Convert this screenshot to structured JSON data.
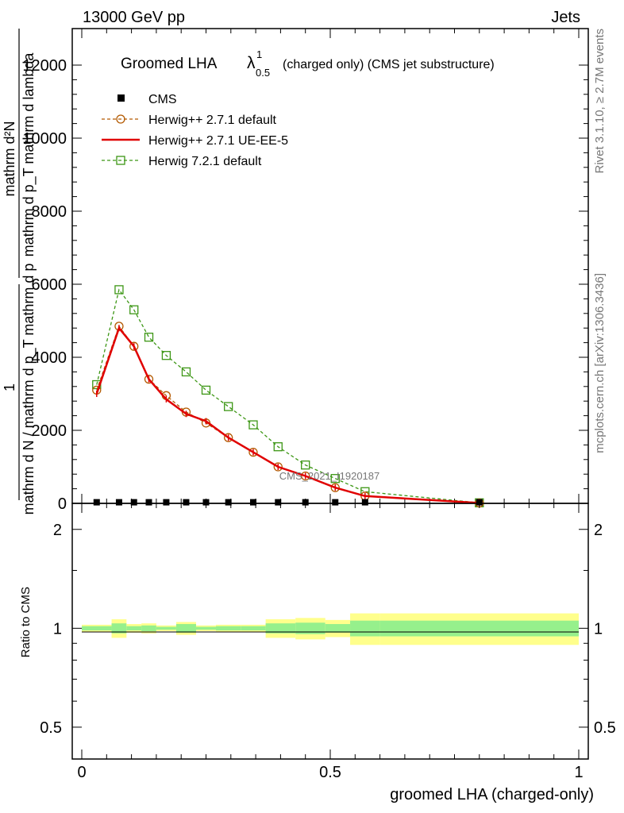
{
  "header": {
    "left": "13000 GeV pp",
    "right": "Jets"
  },
  "side": {
    "rivet": "Rivet 3.1.10, ≥ 2.7M events",
    "mcplots": "mcplots.cern.ch [arXiv:1306.3436]"
  },
  "chart_data": [
    {
      "type": "line",
      "title_main": "Groomed LHA",
      "title_lambda": "λ",
      "title_sup": "1",
      "title_sub": "0.5",
      "title_rest": "(charged only) (CMS jet substructure)",
      "ylabel_numer": "mathrm d²N",
      "ylabel_denom": "mathrm d p_T mathrm d lambda",
      "ylabel_denom_sub": "T",
      "ylabel_pre_numer": "1",
      "ylabel_pre_denom": "mathrm d N / mathrm d p_T mathrm d p",
      "analysis_tag": "CMS_2021_I1920187",
      "xlim": [
        0,
        1
      ],
      "ylim": [
        0,
        13000
      ],
      "y_ticks": [
        {
          "v": 0,
          "label": "0"
        },
        {
          "v": 2000,
          "label": "2000"
        },
        {
          "v": 4000,
          "label": "4000"
        },
        {
          "v": 6000,
          "label": "6000"
        },
        {
          "v": 8000,
          "label": "8000"
        },
        {
          "v": 10000,
          "label": "10000"
        },
        {
          "v": 12000,
          "label": "12000"
        }
      ],
      "x": [
        0.03,
        0.075,
        0.105,
        0.135,
        0.17,
        0.21,
        0.25,
        0.295,
        0.345,
        0.395,
        0.45,
        0.51,
        0.57,
        0.8
      ],
      "series": [
        {
          "name": "CMS",
          "marker": "square-filled",
          "color": "#000000",
          "values": [
            30,
            30,
            30,
            30,
            30,
            30,
            30,
            30,
            30,
            30,
            30,
            30,
            30,
            30
          ]
        },
        {
          "name": "Herwig++ 2.7.1 default",
          "marker": "circle-open",
          "color": "#b35900",
          "dash": "4,3",
          "values": [
            3100,
            4850,
            4300,
            3400,
            2950,
            2500,
            2200,
            1800,
            1400,
            1000,
            750,
            430,
            200,
            10
          ]
        },
        {
          "name": "Herwig++ 2.7.1 UE-EE-5",
          "marker": "none",
          "color": "#e00000",
          "dash": "",
          "values": [
            3000,
            4800,
            4300,
            3400,
            2850,
            2450,
            2250,
            1800,
            1400,
            1000,
            750,
            430,
            200,
            10
          ]
        },
        {
          "name": "Herwig 7.2.1 default",
          "marker": "square-open",
          "color": "#3c9614",
          "dash": "4,3",
          "values": [
            3250,
            5850,
            5300,
            4550,
            4050,
            3600,
            3100,
            2650,
            2150,
            1550,
            1050,
            680,
            320,
            15
          ]
        }
      ]
    },
    {
      "type": "area",
      "ylabel": "Ratio to CMS",
      "xlabel": "groomed LHA (charged-only)",
      "xlim": [
        0,
        1
      ],
      "ylim": [
        0.4,
        2.4
      ],
      "y_ticks": [
        {
          "v": 0.5,
          "label": "0.5"
        },
        {
          "v": 1,
          "label": "1"
        },
        {
          "v": 2,
          "label": "2"
        }
      ],
      "x_ticks": [
        {
          "v": 0,
          "label": "0"
        },
        {
          "v": 0.5,
          "label": "0.5"
        },
        {
          "v": 1,
          "label": "1"
        }
      ],
      "bins": [
        {
          "lo": 0.0,
          "hi": 0.06,
          "green": 0.015,
          "yellow": 0.025
        },
        {
          "lo": 0.06,
          "hi": 0.09,
          "green": 0.035,
          "yellow": 0.065
        },
        {
          "lo": 0.09,
          "hi": 0.12,
          "green": 0.015,
          "yellow": 0.03
        },
        {
          "lo": 0.12,
          "hi": 0.15,
          "green": 0.02,
          "yellow": 0.035
        },
        {
          "lo": 0.15,
          "hi": 0.19,
          "green": 0.01,
          "yellow": 0.02
        },
        {
          "lo": 0.19,
          "hi": 0.23,
          "green": 0.03,
          "yellow": 0.045
        },
        {
          "lo": 0.23,
          "hi": 0.27,
          "green": 0.01,
          "yellow": 0.02
        },
        {
          "lo": 0.27,
          "hi": 0.32,
          "green": 0.015,
          "yellow": 0.025
        },
        {
          "lo": 0.32,
          "hi": 0.37,
          "green": 0.015,
          "yellow": 0.025
        },
        {
          "lo": 0.37,
          "hi": 0.43,
          "green": 0.035,
          "yellow": 0.065
        },
        {
          "lo": 0.43,
          "hi": 0.49,
          "green": 0.04,
          "yellow": 0.075
        },
        {
          "lo": 0.49,
          "hi": 0.54,
          "green": 0.03,
          "yellow": 0.06
        },
        {
          "lo": 0.54,
          "hi": 0.6,
          "green": 0.055,
          "yellow": 0.11
        },
        {
          "lo": 0.6,
          "hi": 1.0,
          "green": 0.055,
          "yellow": 0.11
        }
      ]
    }
  ]
}
